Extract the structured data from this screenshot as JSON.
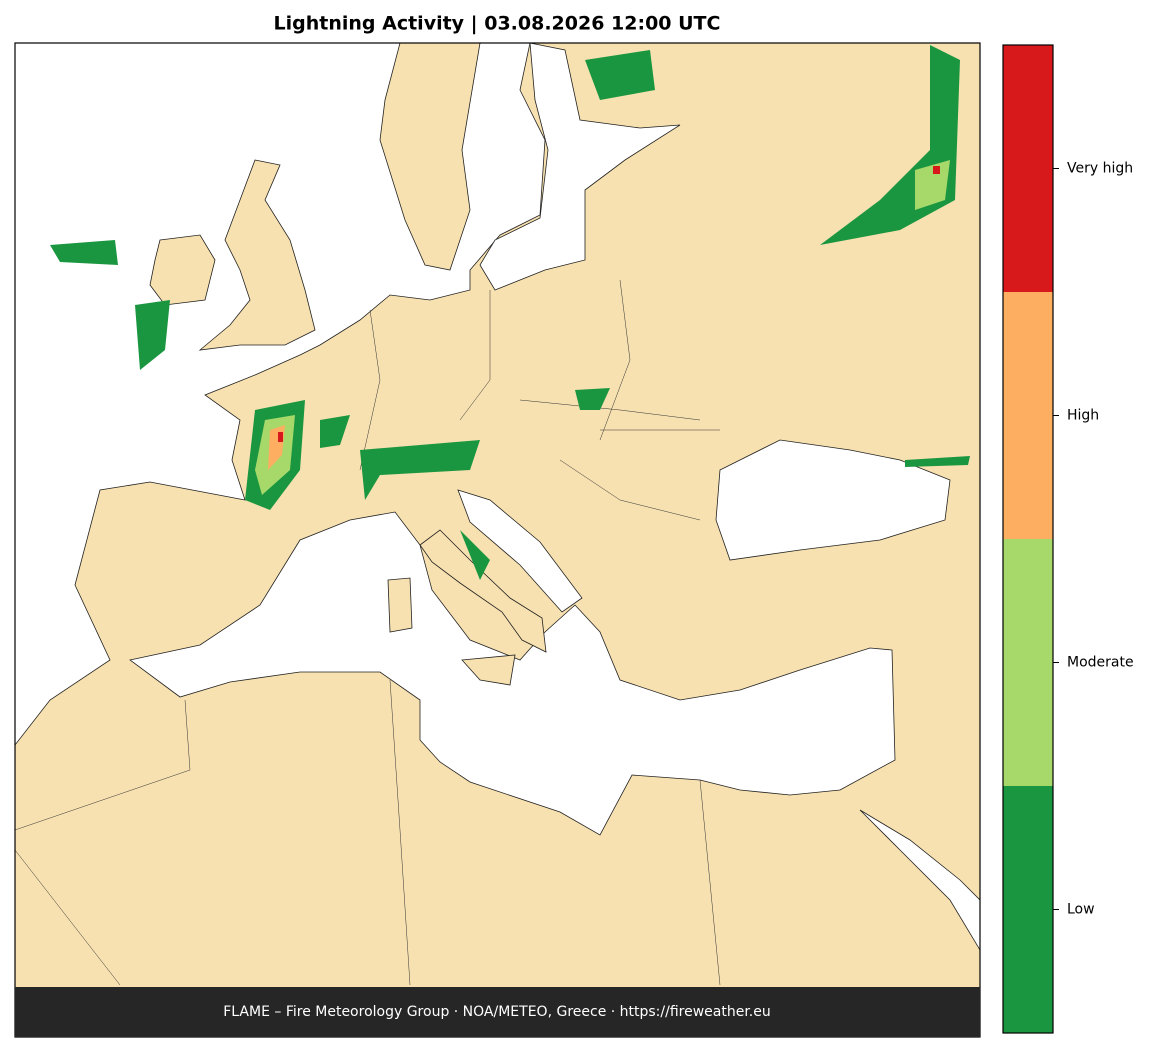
{
  "title": "Lightning Activity  |  03.08.2026 12:00 UTC",
  "legend": {
    "items": [
      {
        "label": "Low",
        "color": "#1a9641"
      },
      {
        "label": "Moderate",
        "color": "#a6d96a"
      },
      {
        "label": "High",
        "color": "#fdae61"
      },
      {
        "label": "Very high",
        "color": "#d7191c"
      }
    ]
  },
  "footer": "FLAME – Fire Meteorology Group · NOA/METEO, Greece · https://fireweather.eu"
}
